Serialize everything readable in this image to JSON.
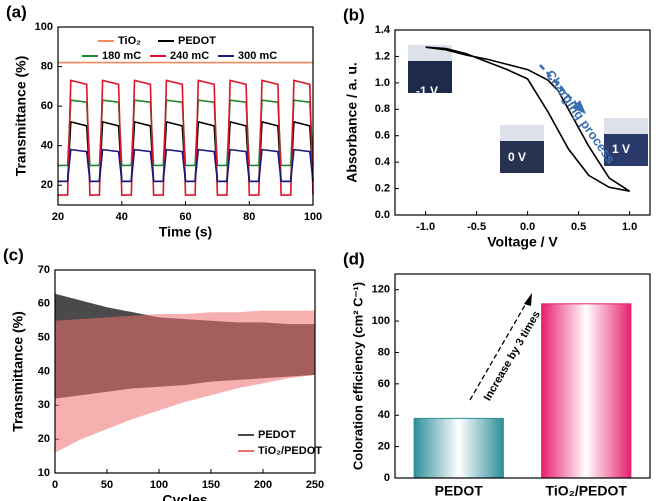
{
  "chart_data": [
    {
      "type": "line",
      "label": "(a)",
      "x_label": "Time (s)",
      "y_label": "Transmittance (%)",
      "x": [
        20,
        23,
        24,
        29,
        30,
        33,
        34,
        39,
        40,
        43,
        44,
        49,
        50,
        53,
        54,
        59,
        60,
        63,
        64,
        69,
        70,
        73,
        74,
        79,
        80,
        83,
        84,
        89,
        90,
        93,
        94,
        99,
        100
      ],
      "xlim": [
        20,
        100
      ],
      "ylim": [
        10,
        100
      ],
      "xticks": [
        20,
        40,
        60,
        80,
        100
      ],
      "yticks": [
        20,
        40,
        60,
        80,
        100
      ],
      "series": [
        {
          "name": "TiO₂",
          "color": "#f08a5d",
          "values": [
            82,
            82,
            82,
            82,
            82,
            82,
            82,
            82,
            82,
            82,
            82,
            82,
            82,
            82,
            82,
            82,
            82,
            82,
            82,
            82,
            82,
            82,
            82,
            82,
            82,
            82,
            82,
            82,
            82,
            82,
            82,
            82,
            82
          ]
        },
        {
          "name": "PEDOT",
          "color": "#000000",
          "values": [
            22,
            22,
            52,
            50,
            22,
            22,
            52,
            50,
            22,
            22,
            52,
            50,
            22,
            22,
            52,
            50,
            22,
            22,
            52,
            50,
            22,
            22,
            52,
            50,
            22,
            22,
            52,
            50,
            22,
            22,
            52,
            50,
            22
          ]
        },
        {
          "name": "180 mC",
          "color": "#1f8a2a",
          "values": [
            30,
            30,
            63,
            62,
            30,
            30,
            63,
            62,
            30,
            30,
            63,
            62,
            30,
            30,
            63,
            62,
            30,
            30,
            63,
            62,
            30,
            30,
            63,
            62,
            30,
            30,
            63,
            62,
            30,
            30,
            63,
            62,
            30
          ]
        },
        {
          "name": "240 mC",
          "color": "#e0102a",
          "values": [
            15,
            15,
            73,
            71,
            15,
            15,
            73,
            71,
            15,
            15,
            73,
            71,
            15,
            15,
            73,
            71,
            15,
            15,
            73,
            71,
            15,
            15,
            73,
            71,
            15,
            15,
            73,
            71,
            15,
            15,
            73,
            71,
            15
          ]
        },
        {
          "name": "300 mC",
          "color": "#1a1a7a",
          "values": [
            22,
            22,
            38,
            37,
            22,
            22,
            38,
            37,
            22,
            22,
            38,
            37,
            22,
            22,
            38,
            37,
            22,
            22,
            38,
            37,
            22,
            22,
            38,
            37,
            22,
            22,
            38,
            37,
            22,
            22,
            38,
            37,
            22
          ]
        }
      ]
    },
    {
      "type": "line",
      "label": "(b)",
      "x_label": "Voltage / V",
      "y_label": "Absorbance / a. u.",
      "x": [
        -1.0,
        -0.8,
        -0.6,
        -0.4,
        -0.2,
        0.0,
        0.2,
        0.4,
        0.6,
        0.8,
        1.0,
        0.8,
        0.6,
        0.4,
        0.3,
        0.2,
        0.0,
        -0.2,
        -0.4,
        -0.6,
        -0.8,
        -1.0
      ],
      "xlim": [
        -1.3,
        1.2
      ],
      "ylim": [
        0,
        1.4
      ],
      "xticks": [
        {
          "value": -1,
          "label": "-1.0"
        },
        {
          "value": -0.5,
          "label": "-0.5"
        },
        {
          "value": 0,
          "label": "0.0"
        },
        {
          "value": 0.5,
          "label": "0.5"
        },
        {
          "value": 1,
          "label": "1.0"
        }
      ],
      "yticks": [
        {
          "value": 0,
          "label": "0.0"
        },
        0.2,
        0.4,
        0.6,
        0.8,
        {
          "value": 1,
          "label": "1.0"
        },
        1.2,
        1.4
      ],
      "series": [
        {
          "color": "#000000",
          "values": [
            1.27,
            1.26,
            1.22,
            1.16,
            1.1,
            1.03,
            0.78,
            0.5,
            0.3,
            0.21,
            0.18,
            0.28,
            0.52,
            0.8,
            0.94,
            1.02,
            1.1,
            1.14,
            1.18,
            1.21,
            1.25,
            1.27
          ]
        }
      ],
      "annotations": [
        "-1 V",
        "0 V",
        "1 V",
        "Charging process"
      ]
    },
    {
      "type": "band",
      "label": "(c)",
      "x_label": "Cycles",
      "y_label": "Transmittance (%)",
      "x": [
        0,
        25,
        50,
        75,
        100,
        125,
        150,
        175,
        200,
        225,
        250
      ],
      "xlim": [
        0,
        250
      ],
      "ylim": [
        10,
        70
      ],
      "xticks": [
        0,
        50,
        100,
        150,
        200,
        250
      ],
      "yticks": [
        10,
        20,
        30,
        40,
        50,
        60,
        70
      ],
      "series": [
        {
          "name": "PEDOT",
          "color": "#4a4a4a",
          "values": [
            63,
            61,
            59,
            57.5,
            56,
            55.5,
            55,
            54.5,
            54.5,
            54,
            54
          ],
          "lower": [
            32,
            33,
            34,
            35,
            35.5,
            36,
            37,
            37.5,
            38,
            38.5,
            39
          ]
        },
        {
          "name": "TiO₂/PEDOT",
          "color": "#f07070",
          "values": [
            55,
            55.5,
            56,
            56.5,
            57,
            57,
            57.5,
            57.5,
            58,
            58,
            58
          ],
          "lower": [
            16,
            20,
            23,
            26,
            28.5,
            31,
            33,
            35,
            36.5,
            38,
            39
          ]
        }
      ]
    },
    {
      "type": "bar",
      "label": "(d)",
      "y_label": "Coloration efficiency (cm² C⁻¹)",
      "categories": [
        "PEDOT",
        "TiO₂/PEDOT"
      ],
      "values": [
        38,
        111
      ],
      "colors": [
        "#2f8f9a",
        "#e8206e"
      ],
      "ylim": [
        0,
        130
      ],
      "yticks": [
        0,
        20,
        40,
        60,
        80,
        100,
        120
      ],
      "annotations": [
        "Increase by 3 times"
      ]
    }
  ]
}
